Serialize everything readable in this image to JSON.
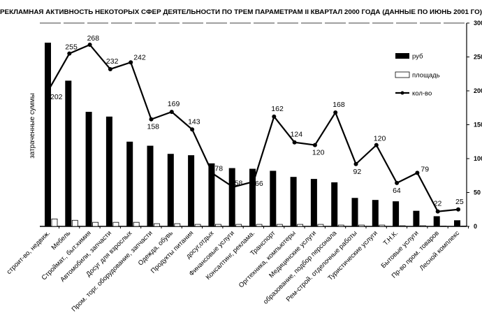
{
  "chart_data": {
    "type": "bar",
    "title": "РЕКЛАМНАЯ АКТИВНОСТЬ НЕКОТОРЫХ СФЕР ДЕЯТЕЛЬНОСТИ ПО ТРЕМ ПАРАМЕТРАМ II КВАРТАЛ 2000 ГОДА (ДАННЫЕ ПО ИЮНЬ 2001 ГО)",
    "ylabel": "затраченные суммы",
    "y2lim": [
      0,
      300
    ],
    "y2ticks": [
      "0",
      "50",
      "100",
      "150",
      "200",
      "250",
      "300"
    ],
    "legend_position": "top-right",
    "categories": [
      "строит-во, недвиж.",
      "Мебель",
      "Строймат., быт.химия",
      "Автомобили, запчасти",
      "Досуг для взрослых",
      "Пром. торг. оборудование, запчасти",
      "Одежда, обувь",
      "Продукты питания",
      "досуг,отдых",
      "Финансовые услуги",
      "Консалтинг, реклама.",
      "Транспорт",
      "Оргтехника, компьютеры",
      "Медицинские услуги",
      "образование, подбор персонала",
      "Рем-строй. отделочные работы",
      "Туристические услуги",
      "Т.Н.К.",
      "Бытовые услуги",
      "Пр-во пром. товаров",
      "Лесной комплекс"
    ],
    "series": [
      {
        "name": "руб",
        "type": "bar",
        "color": "#000000",
        "values": [
          271,
          215,
          169,
          162,
          125,
          119,
          107,
          105,
          93,
          86,
          85,
          82,
          73,
          70,
          65,
          42,
          39,
          37,
          23,
          15,
          9
        ]
      },
      {
        "name": "площадь",
        "type": "bar",
        "color": "#ffffff",
        "values": [
          11,
          9,
          6,
          6,
          6,
          4,
          4,
          3,
          3,
          3,
          3,
          3,
          3,
          3,
          2,
          2,
          2,
          1,
          1,
          0.5,
          0.5
        ]
      },
      {
        "name": "кол-во",
        "type": "line",
        "color": "#000000",
        "values": [
          202,
          255,
          268,
          232,
          242,
          158,
          169,
          143,
          78,
          58,
          66,
          162,
          124,
          120,
          168,
          92,
          120,
          64,
          79,
          22,
          25
        ]
      }
    ]
  }
}
